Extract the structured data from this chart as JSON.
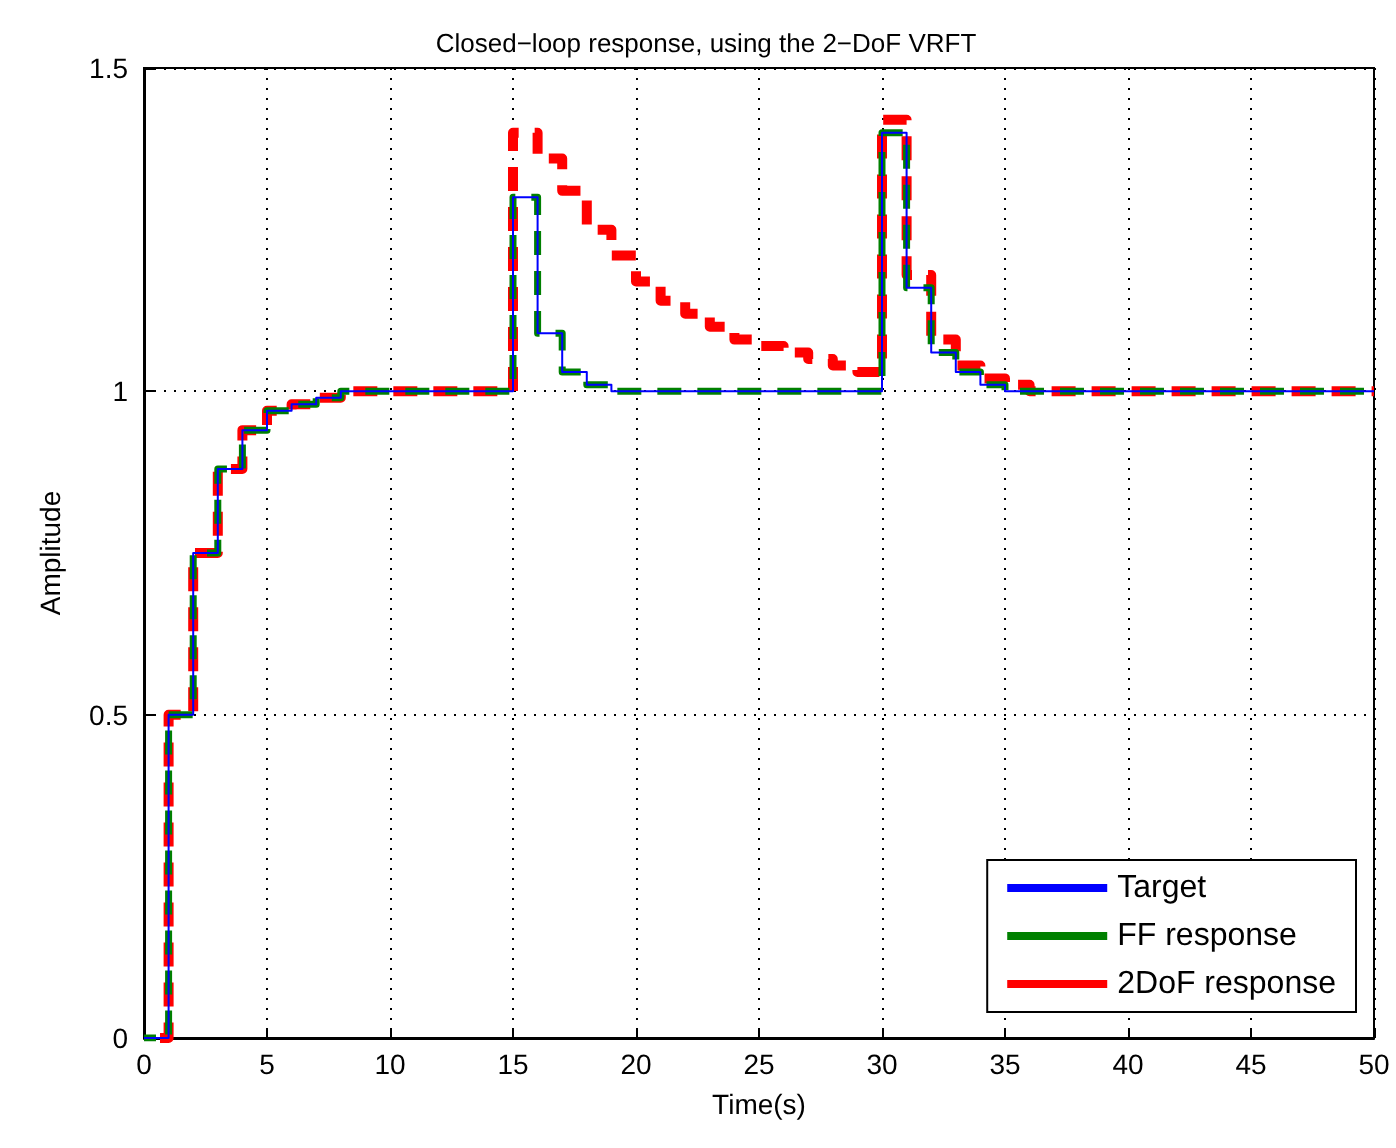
{
  "chart_data": {
    "type": "step",
    "title": "Closed−loop response, using the 2−DoF VRFT",
    "xlabel": "Time(s)",
    "ylabel": "Amplitude",
    "x": [
      0,
      1,
      2,
      3,
      4,
      5,
      6,
      7,
      8,
      9,
      10,
      11,
      12,
      13,
      14,
      15,
      16,
      17,
      18,
      19,
      20,
      21,
      22,
      23,
      24,
      25,
      26,
      27,
      28,
      29,
      30,
      31,
      32,
      33,
      34,
      35,
      36,
      37,
      38,
      39,
      40,
      41,
      42,
      43,
      44,
      45,
      46,
      47,
      48,
      49,
      50
    ],
    "series": [
      {
        "name": "Target",
        "color": "#0000ff",
        "line_style": "solid",
        "values": [
          0,
          0.5,
          0.75,
          0.88,
          0.94,
          0.97,
          0.98,
          0.99,
          1,
          1,
          1,
          1,
          1,
          1,
          1,
          1.3,
          1.09,
          1.03,
          1.01,
          1,
          1,
          1,
          1,
          1,
          1,
          1,
          1,
          1,
          1,
          1,
          1.4,
          1.16,
          1.06,
          1.03,
          1.01,
          1,
          1,
          1,
          1,
          1,
          1,
          1,
          1,
          1,
          1,
          1,
          1,
          1,
          1,
          1,
          1
        ]
      },
      {
        "name": "FF response",
        "color": "#008000",
        "line_style": "dashed",
        "values": [
          0,
          0.5,
          0.75,
          0.88,
          0.94,
          0.97,
          0.98,
          0.99,
          1,
          1,
          1,
          1,
          1,
          1,
          1,
          1.3,
          1.09,
          1.03,
          1.01,
          1,
          1,
          1,
          1,
          1,
          1,
          1,
          1,
          1,
          1,
          1,
          1.4,
          1.16,
          1.06,
          1.03,
          1.01,
          1,
          1,
          1,
          1,
          1,
          1,
          1,
          1,
          1,
          1,
          1,
          1,
          1,
          1,
          1,
          1
        ]
      },
      {
        "name": "2DoF response",
        "color": "#ff0000",
        "line_style": "dashed",
        "values": [
          0,
          0.5,
          0.75,
          0.88,
          0.94,
          0.97,
          0.98,
          0.99,
          1,
          1,
          1,
          1,
          1,
          1,
          1,
          1.4,
          1.36,
          1.31,
          1.25,
          1.21,
          1.17,
          1.14,
          1.12,
          1.1,
          1.08,
          1.07,
          1.06,
          1.05,
          1.04,
          1.03,
          1.42,
          1.18,
          1.08,
          1.04,
          1.02,
          1.01,
          1,
          1,
          1,
          1,
          1,
          1,
          1,
          1,
          1,
          1,
          1,
          1,
          1,
          1,
          1
        ]
      }
    ],
    "xlim": [
      0,
      50
    ],
    "xticks": [
      0,
      5,
      10,
      15,
      20,
      25,
      30,
      35,
      40,
      45,
      50
    ],
    "ylim": [
      0,
      1.5
    ],
    "yticks": [
      0,
      0.5,
      1,
      1.5
    ],
    "grid": true,
    "legend": "bottom right",
    "marker": "none"
  }
}
